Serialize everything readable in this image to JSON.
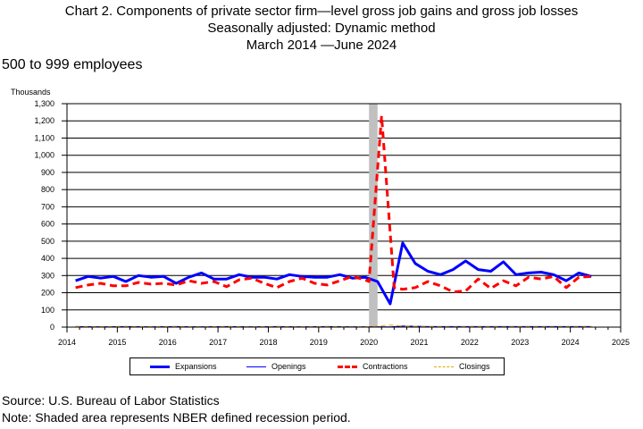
{
  "title_lines": [
    "Chart 2. Components of private sector firm—level gross job gains and gross job losses",
    "Seasonally adjusted: Dynamic method",
    "March 2014 —June 2024"
  ],
  "subtitle": "500 to 999 employees",
  "source": "Source: U.S. Bureau of Labor Statistics",
  "note": "Note: Shaded area represents NBER defined recession period.",
  "chart_data": {
    "type": "line",
    "ylabel": "Thousands",
    "xlim": [
      2014,
      2025
    ],
    "ylim": [
      0,
      1300
    ],
    "yticks": [
      0,
      100,
      200,
      300,
      400,
      500,
      600,
      700,
      800,
      900,
      1000,
      1100,
      1200,
      1300
    ],
    "ytick_labels": [
      "0",
      "100",
      "200",
      "300",
      "400",
      "500",
      "600",
      "700",
      "800",
      "900",
      "1,000",
      "1,100",
      "1,200",
      "1,300"
    ],
    "xticks": [
      2014,
      2015,
      2016,
      2017,
      2018,
      2019,
      2020,
      2021,
      2022,
      2023,
      2024,
      2025
    ],
    "xtick_labels": [
      "2014",
      "2015",
      "2016",
      "2017",
      "2018",
      "2019",
      "2020",
      "2021",
      "2022",
      "2023",
      "2024",
      "2025"
    ],
    "grid": "horizontal",
    "recession_shading": [
      2020.0,
      2020.17
    ],
    "legend_position": "bottom",
    "series": [
      {
        "name": "Expansions",
        "color": "#0000ff",
        "style": "solid",
        "width": 3,
        "x": [
          2014.17,
          2014.42,
          2014.67,
          2014.92,
          2015.17,
          2015.42,
          2015.67,
          2015.92,
          2016.17,
          2016.42,
          2016.67,
          2016.92,
          2017.17,
          2017.42,
          2017.67,
          2017.92,
          2018.17,
          2018.42,
          2018.67,
          2018.92,
          2019.17,
          2019.42,
          2019.67,
          2019.92,
          2020.17,
          2020.42,
          2020.67,
          2020.92,
          2021.17,
          2021.42,
          2021.67,
          2021.92,
          2022.17,
          2022.42,
          2022.67,
          2022.92,
          2023.17,
          2023.42,
          2023.67,
          2023.92,
          2024.17,
          2024.42
        ],
        "y": [
          270,
          295,
          285,
          295,
          265,
          300,
          290,
          295,
          255,
          290,
          315,
          280,
          280,
          305,
          290,
          290,
          280,
          305,
          295,
          290,
          290,
          305,
          285,
          290,
          265,
          135,
          490,
          370,
          325,
          305,
          335,
          385,
          335,
          325,
          380,
          305,
          315,
          320,
          305,
          270,
          315,
          295
        ]
      },
      {
        "name": "Openings",
        "color": "#0000ff",
        "style": "solid",
        "width": 1,
        "x": [
          2014.17,
          2014.67,
          2015.17,
          2015.67,
          2016.17,
          2016.67,
          2017.17,
          2017.67,
          2018.17,
          2018.67,
          2019.17,
          2019.67,
          2020.17,
          2020.42,
          2020.67,
          2021.17,
          2021.67,
          2022.17,
          2022.67,
          2023.17,
          2023.67,
          2024.17,
          2024.42
        ],
        "y": [
          3,
          2,
          3,
          2,
          3,
          2,
          3,
          2,
          3,
          2,
          3,
          2,
          2,
          1,
          6,
          3,
          3,
          3,
          3,
          3,
          3,
          3,
          3
        ]
      },
      {
        "name": "Contractions",
        "color": "#ff0000",
        "style": "dashed",
        "width": 3,
        "x": [
          2014.17,
          2014.42,
          2014.67,
          2014.92,
          2015.17,
          2015.42,
          2015.67,
          2015.92,
          2016.17,
          2016.42,
          2016.67,
          2016.92,
          2017.17,
          2017.42,
          2017.67,
          2017.92,
          2018.17,
          2018.42,
          2018.67,
          2018.92,
          2019.17,
          2019.42,
          2019.67,
          2019.92,
          2020.0,
          2020.25,
          2020.5,
          2020.67,
          2020.92,
          2021.17,
          2021.42,
          2021.67,
          2021.92,
          2022.17,
          2022.42,
          2022.67,
          2022.92,
          2023.17,
          2023.42,
          2023.67,
          2023.92,
          2024.17,
          2024.42
        ],
        "y": [
          230,
          245,
          255,
          240,
          240,
          260,
          250,
          255,
          245,
          270,
          255,
          265,
          235,
          275,
          285,
          255,
          230,
          265,
          285,
          255,
          245,
          270,
          295,
          275,
          265,
          1230,
          230,
          220,
          230,
          265,
          240,
          205,
          210,
          280,
          225,
          270,
          240,
          290,
          280,
          295,
          230,
          290,
          295
        ]
      },
      {
        "name": "Closings",
        "color": "#e8a800",
        "style": "dashed",
        "width": 1,
        "x": [
          2014.17,
          2014.67,
          2015.17,
          2015.67,
          2016.17,
          2016.67,
          2017.17,
          2017.67,
          2018.17,
          2018.67,
          2019.17,
          2019.67,
          2020.0,
          2020.42,
          2020.67,
          2021.17,
          2021.67,
          2022.17,
          2022.67,
          2023.17,
          2023.67,
          2024.17,
          2024.42
        ],
        "y": [
          3,
          3,
          3,
          3,
          3,
          2,
          3,
          2,
          3,
          3,
          3,
          2,
          3,
          12,
          6,
          3,
          2,
          3,
          2,
          3,
          2,
          3,
          3
        ]
      }
    ]
  }
}
